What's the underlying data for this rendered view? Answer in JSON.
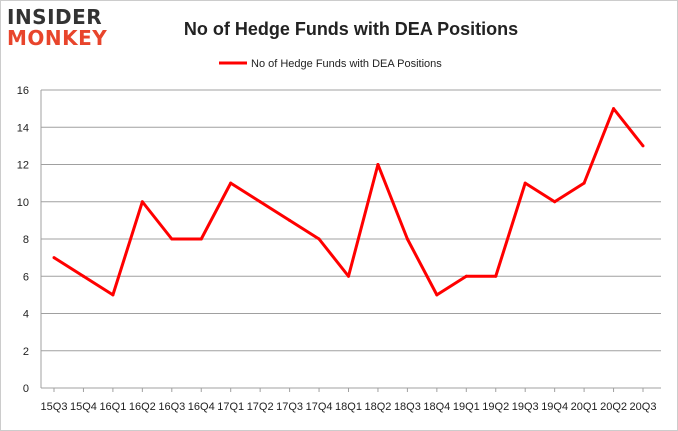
{
  "logo": {
    "line1": "INSIDER",
    "line2": "MONKEY"
  },
  "chart_data": {
    "type": "line",
    "title": "No of Hedge Funds with DEA Positions",
    "xlabel": "",
    "ylabel": "",
    "categories": [
      "15Q3",
      "15Q4",
      "16Q1",
      "16Q2",
      "16Q3",
      "16Q4",
      "17Q1",
      "17Q2",
      "17Q3",
      "17Q4",
      "18Q1",
      "18Q2",
      "18Q3",
      "18Q4",
      "19Q1",
      "19Q2",
      "19Q3",
      "19Q4",
      "20Q1",
      "20Q2",
      "20Q3"
    ],
    "series": [
      {
        "name": "No of Hedge Funds with DEA Positions",
        "values": [
          7,
          6,
          5,
          10,
          8,
          8,
          11,
          10,
          9,
          8,
          6,
          12,
          8,
          5,
          6,
          6,
          11,
          10,
          11,
          15,
          13
        ],
        "color": "#ff0000"
      }
    ],
    "ylim": [
      0,
      16
    ],
    "yticks": [
      0,
      2,
      4,
      6,
      8,
      10,
      12,
      14,
      16
    ],
    "grid": true,
    "legend": "top-center"
  }
}
